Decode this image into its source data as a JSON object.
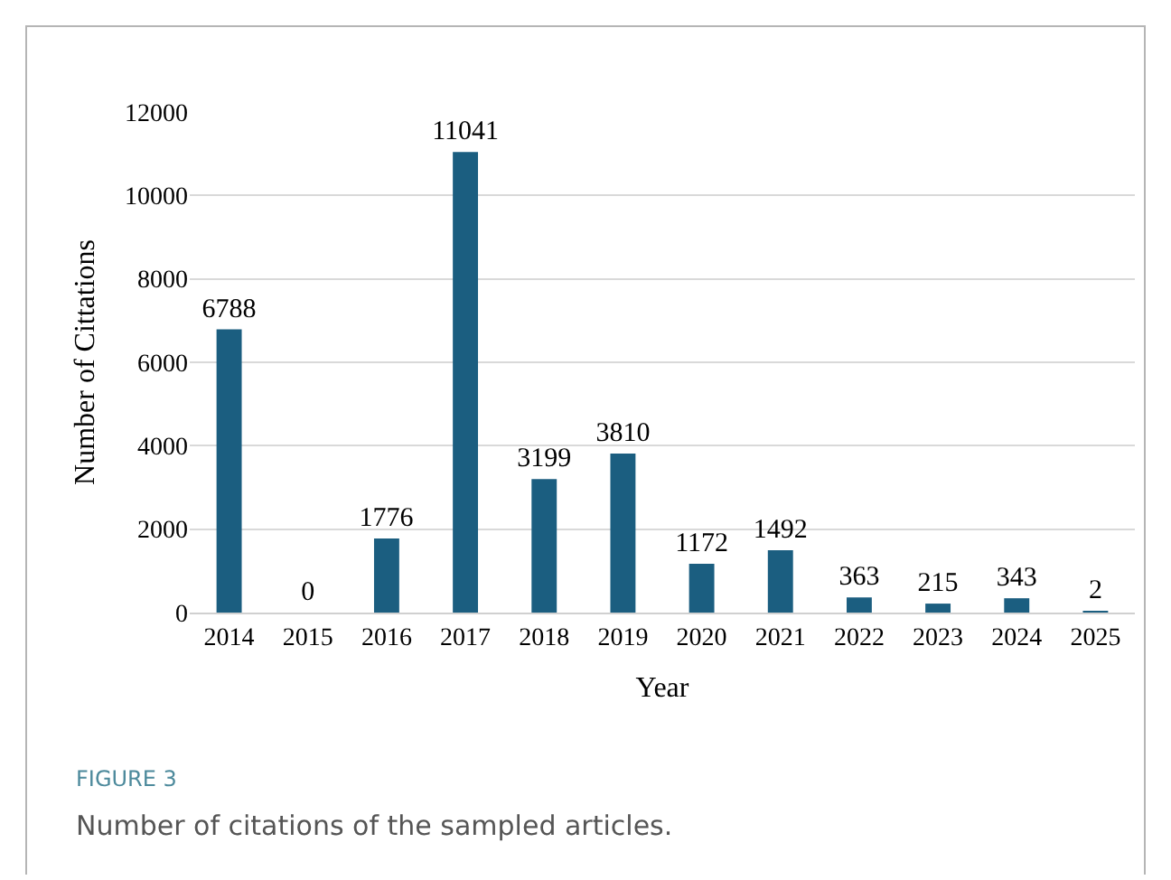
{
  "chart_data": {
    "type": "bar",
    "xlabel": "Year",
    "ylabel": "Number of Cittations",
    "categories": [
      "2014",
      "2015",
      "2016",
      "2017",
      "2018",
      "2019",
      "2020",
      "2021",
      "2022",
      "2023",
      "2024",
      "2025"
    ],
    "values": [
      6788,
      0,
      1776,
      11041,
      3199,
      3810,
      1172,
      1492,
      363,
      215,
      343,
      2
    ],
    "color": "#1b5e80",
    "ylim": [
      0,
      12000
    ],
    "yticks": [
      0,
      2000,
      4000,
      6000,
      8000,
      10000,
      12000
    ],
    "grid": "y",
    "data_labels": true,
    "annotations": [
      "FIGURE 3",
      "Number of citations of the sampled articles."
    ]
  }
}
